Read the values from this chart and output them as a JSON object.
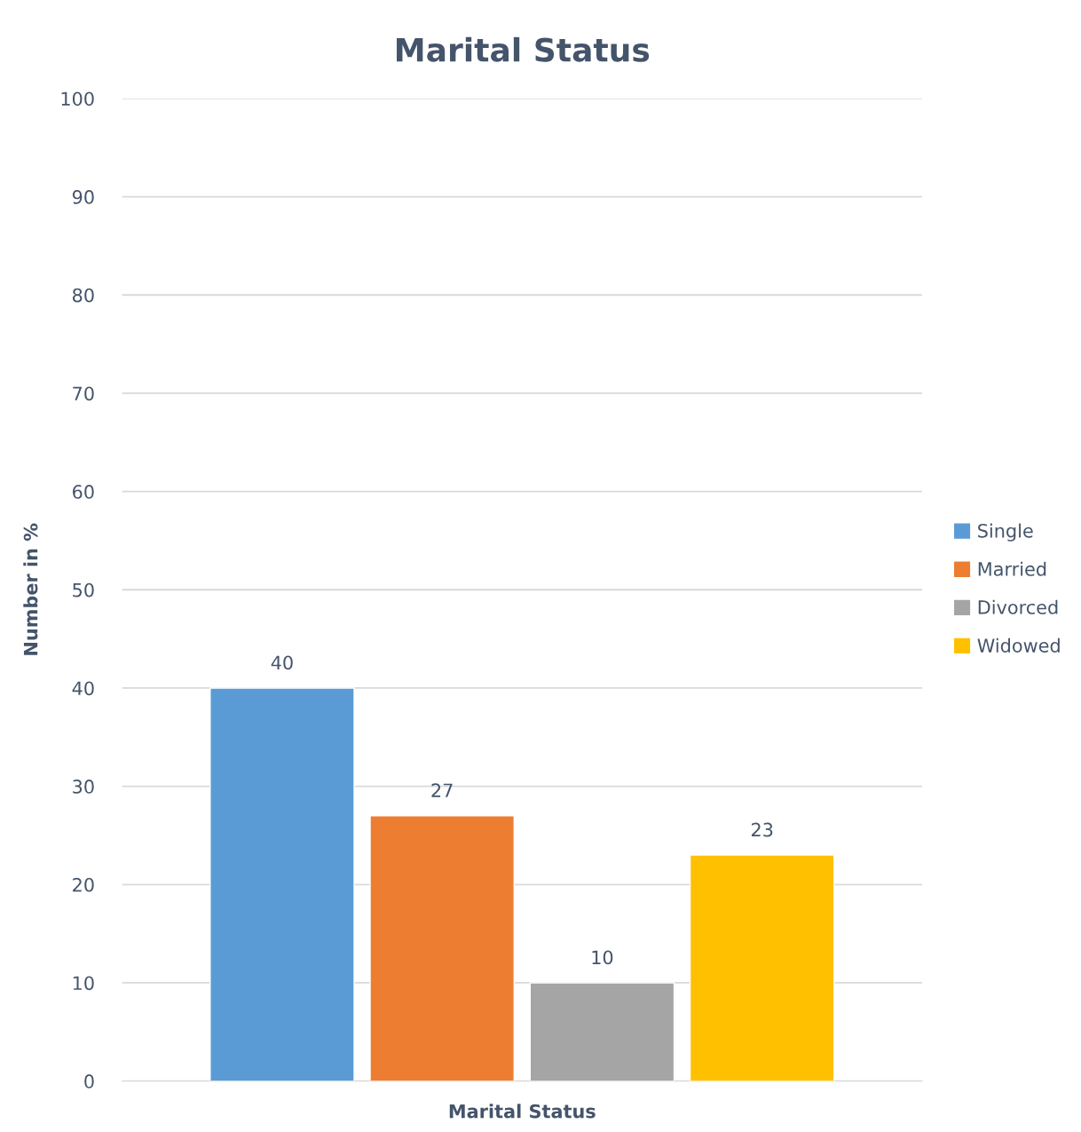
{
  "chart_data": {
    "type": "bar",
    "title": "Marital Status",
    "xlabel": "Marital Status",
    "ylabel": "Number in %",
    "categories": [
      null
    ],
    "series": [
      {
        "name": "Single",
        "color": "#5b9bd5",
        "values": [
          40
        ]
      },
      {
        "name": "Married",
        "color": "#ed7d31",
        "values": [
          27
        ]
      },
      {
        "name": "Divorced",
        "color": "#a5a5a5",
        "values": [
          10
        ]
      },
      {
        "name": "Widowed",
        "color": "#ffc000",
        "values": [
          23
        ]
      }
    ],
    "ylim": [
      0,
      100
    ],
    "yticks": [
      0,
      10,
      20,
      30,
      40,
      50,
      60,
      70,
      80,
      90,
      100
    ],
    "grid": "y",
    "legend": "right",
    "data_labels": true
  }
}
